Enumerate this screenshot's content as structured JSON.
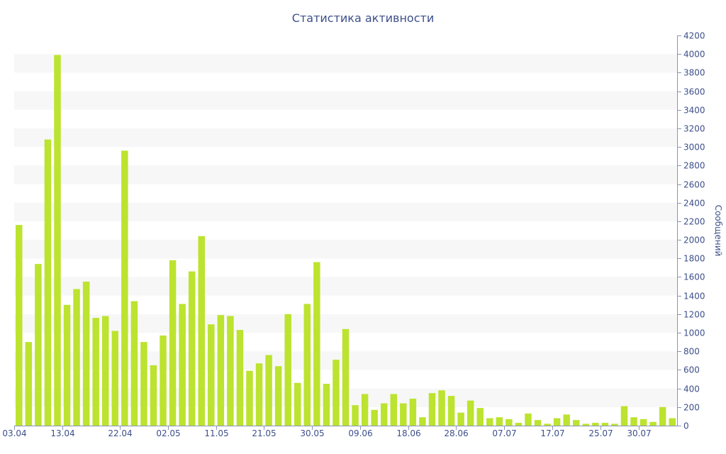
{
  "colors": {
    "bar": "#bce32f",
    "band": "#f7f7f7",
    "axis": "#8a94b8",
    "text": "#3d4f8a"
  },
  "chart_data": {
    "type": "bar",
    "title": "Статистика активности",
    "xlabel": "",
    "ylabel": "Сообщений",
    "ylim": [
      0,
      4200
    ],
    "ytick_step": 200,
    "y_axis_side": "right",
    "grid": "alternating horizontal bands",
    "x_tick_labels": [
      "03.04",
      "13.04",
      "22.04",
      "02.05",
      "11.05",
      "21.05",
      "30.05",
      "09.06",
      "18.06",
      "28.06",
      "07.07",
      "17.07",
      "25.07",
      "30.07"
    ],
    "x_tick_bar_index": [
      0,
      5,
      11,
      16,
      21,
      26,
      31,
      36,
      41,
      46,
      51,
      56,
      61,
      65
    ],
    "values": [
      2160,
      900,
      1740,
      3080,
      3990,
      1300,
      1470,
      1550,
      1160,
      1180,
      1020,
      2960,
      1340,
      900,
      650,
      970,
      1780,
      1310,
      1660,
      2040,
      1090,
      1190,
      1180,
      1030,
      590,
      670,
      760,
      640,
      1200,
      460,
      1310,
      1760,
      450,
      710,
      1040,
      220,
      340,
      170,
      240,
      340,
      240,
      290,
      90,
      350,
      380,
      320,
      140,
      270,
      190,
      80,
      90,
      70,
      30,
      130,
      60,
      20,
      80,
      120,
      60,
      20,
      30,
      30,
      20,
      210,
      90,
      70,
      40,
      200,
      80
    ]
  }
}
